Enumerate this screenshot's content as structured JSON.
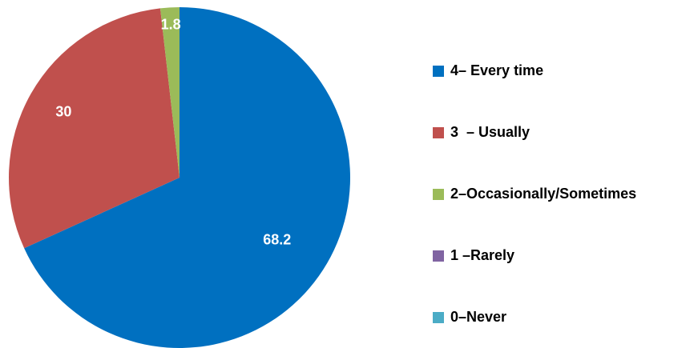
{
  "chart_data": {
    "type": "pie",
    "categories": [
      "4– Every time",
      "3  – Usually",
      "2–Occasionally/Sometimes",
      "1 –Rarely",
      "0–Never"
    ],
    "values": [
      68.2,
      30,
      1.8,
      0,
      0
    ],
    "data_labels": [
      "68.2",
      "30",
      "1.8",
      "",
      ""
    ],
    "colors": [
      "#0070C0",
      "#C0504D",
      "#9BBB59",
      "#8064A2",
      "#4BACC6"
    ],
    "legend_position": "right",
    "start_angle": "top",
    "direction": "clockwise"
  }
}
